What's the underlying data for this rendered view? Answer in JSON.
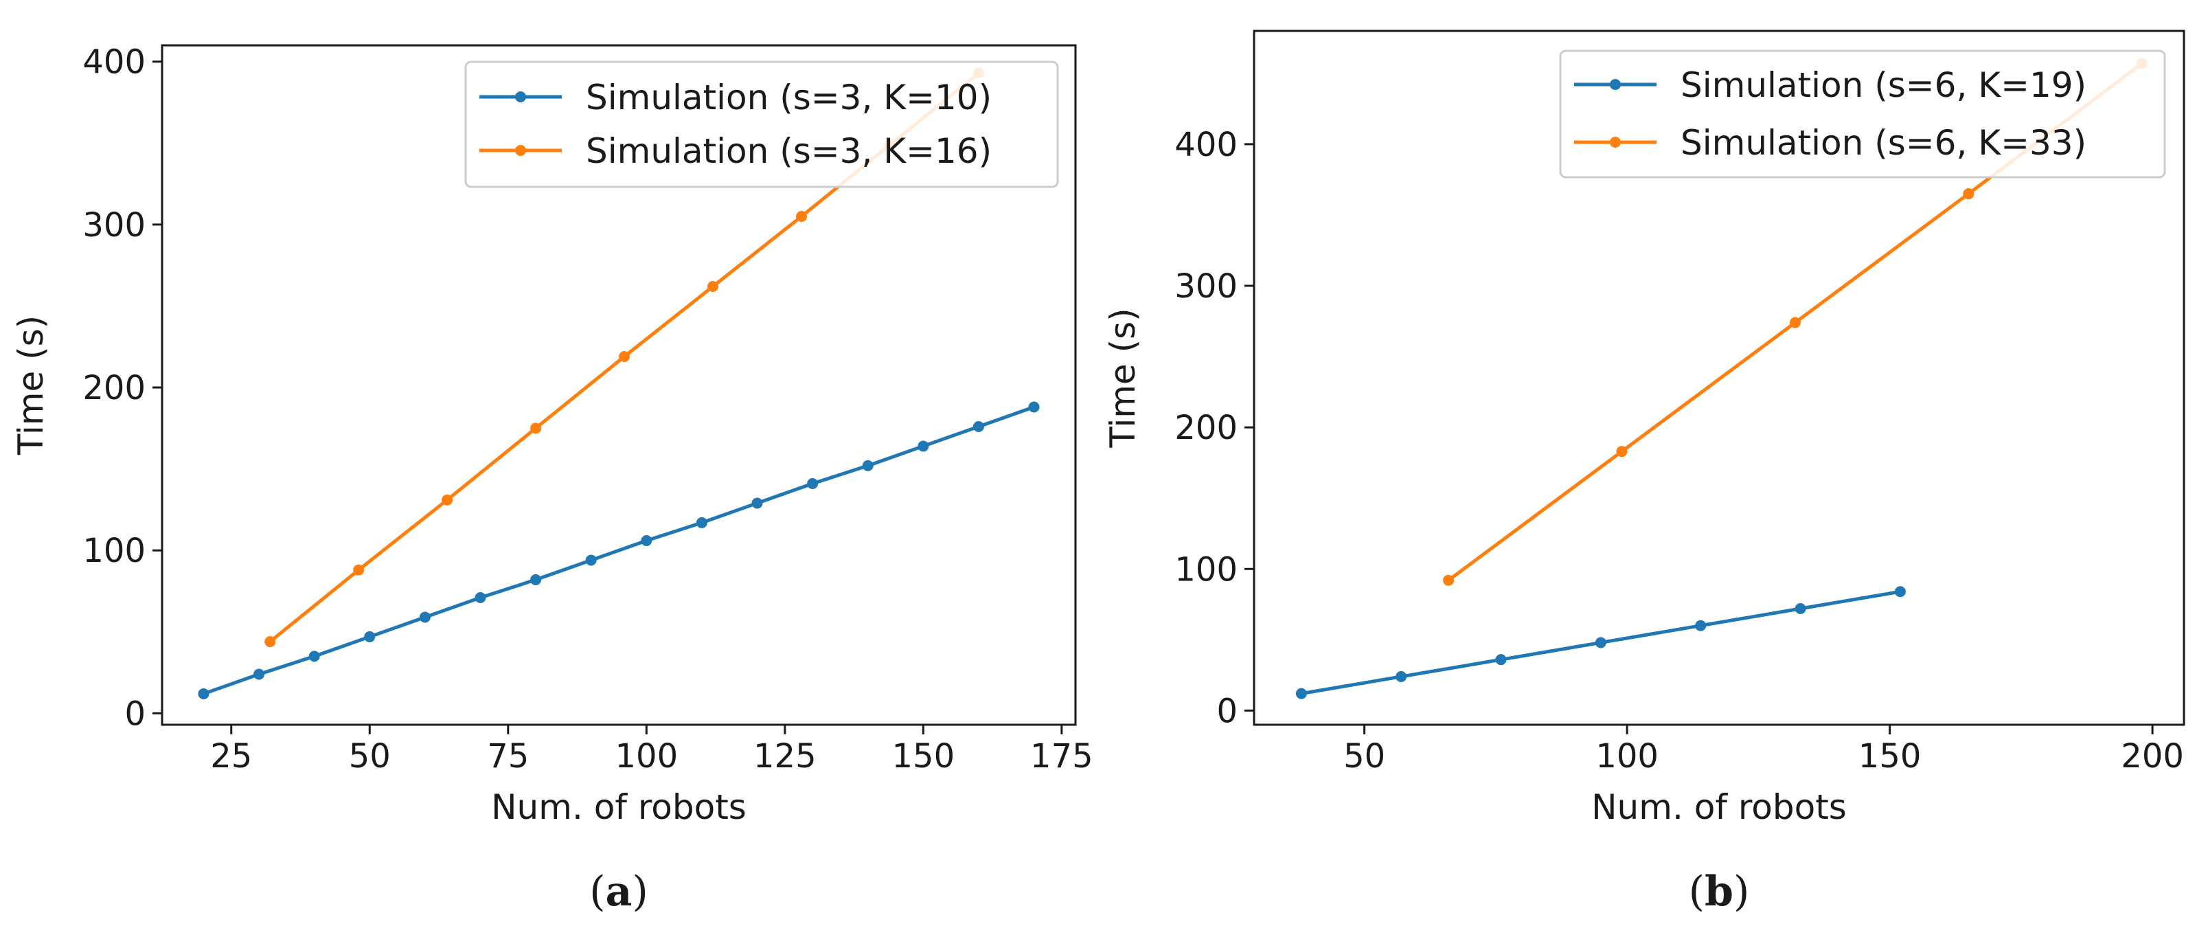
{
  "chart_data": [
    {
      "type": "line",
      "caption_letter": "a",
      "xlabel": "Num. of robots",
      "ylabel": "Time (s)",
      "xlim": [
        12.5,
        177.5
      ],
      "ylim": [
        -7,
        410
      ],
      "xticks": [
        25,
        50,
        75,
        100,
        125,
        150,
        175
      ],
      "yticks": [
        0,
        100,
        200,
        300,
        400
      ],
      "legend_position": "top-right",
      "series": [
        {
          "name": "Simulation (s=3, K=10)",
          "color": "#1f77b4",
          "x": [
            20,
            30,
            40,
            50,
            60,
            70,
            80,
            90,
            100,
            110,
            120,
            130,
            140,
            150,
            160,
            170
          ],
          "y": [
            12,
            24,
            35,
            47,
            59,
            71,
            82,
            94,
            106,
            117,
            129,
            141,
            152,
            164,
            176,
            188
          ]
        },
        {
          "name": "Simulation (s=3, K=16)",
          "color": "#ff7f0e",
          "x": [
            32,
            48,
            64,
            80,
            96,
            112,
            128,
            144,
            160
          ],
          "y": [
            44,
            88,
            131,
            175,
            219,
            262,
            305,
            349,
            393
          ]
        }
      ]
    },
    {
      "type": "line",
      "caption_letter": "b",
      "xlabel": "Num. of robots",
      "ylabel": "Time (s)",
      "xlim": [
        29,
        206
      ],
      "ylim": [
        -10,
        480
      ],
      "xticks": [
        50,
        100,
        150,
        200
      ],
      "yticks": [
        0,
        100,
        200,
        300,
        400
      ],
      "legend_position": "top-right",
      "series": [
        {
          "name": "Simulation (s=6, K=19)",
          "color": "#1f77b4",
          "x": [
            38,
            57,
            76,
            95,
            114,
            133,
            152
          ],
          "y": [
            12,
            24,
            36,
            48,
            60,
            72,
            84
          ]
        },
        {
          "name": "Simulation (s=6, K=33)",
          "color": "#ff7f0e",
          "x": [
            66,
            99,
            132,
            165,
            198
          ],
          "y": [
            92,
            183,
            274,
            365,
            457
          ]
        }
      ]
    }
  ]
}
